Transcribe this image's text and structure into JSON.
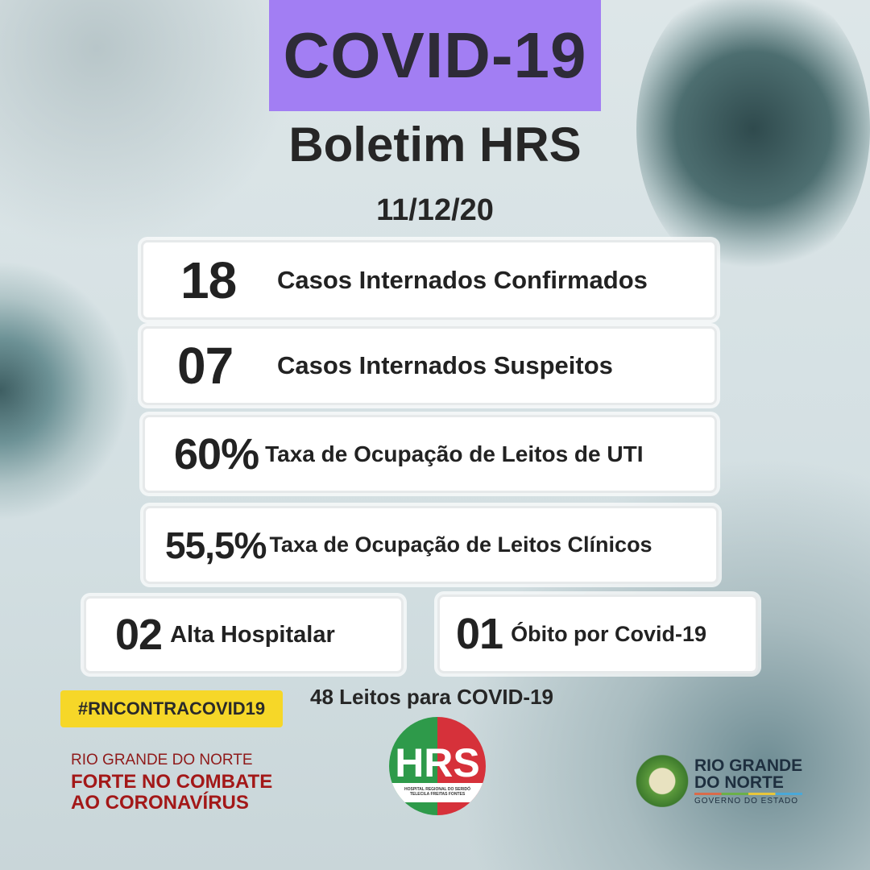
{
  "header": {
    "title": "COVID-19",
    "subtitle": "Boletim HRS",
    "date": "11/12/20"
  },
  "stats": [
    {
      "value": "18",
      "label": "Casos Internados Confirmados"
    },
    {
      "value": "07",
      "label": "Casos Internados Suspeitos"
    },
    {
      "value": "60%",
      "label": "Taxa de Ocupação de Leitos de UTI"
    },
    {
      "value": "55,5%",
      "label": "Taxa de Ocupação de Leitos Clínicos"
    },
    {
      "value": "02",
      "label": "Alta Hospitalar"
    },
    {
      "value": "01",
      "label": "Óbito por Covid-19"
    }
  ],
  "beds_note": "48 Leitos para COVID-19",
  "hashtag": "#RNCONTRACOVID19",
  "campaign": {
    "line1": "RIO GRANDE DO NORTE",
    "line2": "FORTE NO COMBATE",
    "line3": "AO CORONAVÍRUS"
  },
  "hrs_logo": {
    "letters": "HRS",
    "line1": "HOSPITAL REGIONAL DO SERIDÓ",
    "line2": "TELECILA FREITAS FONTES"
  },
  "rn_logo": {
    "line1": "RIO GRANDE",
    "line2": "DO NORTE",
    "line3": "GOVERNO DO ESTADO"
  },
  "colors": {
    "title_bg": "#a27ef3",
    "hashtag_bg": "#f6d728",
    "campaign_red": "#a31818",
    "logo_green": "#2e9a4a",
    "logo_red": "#d6313a"
  }
}
